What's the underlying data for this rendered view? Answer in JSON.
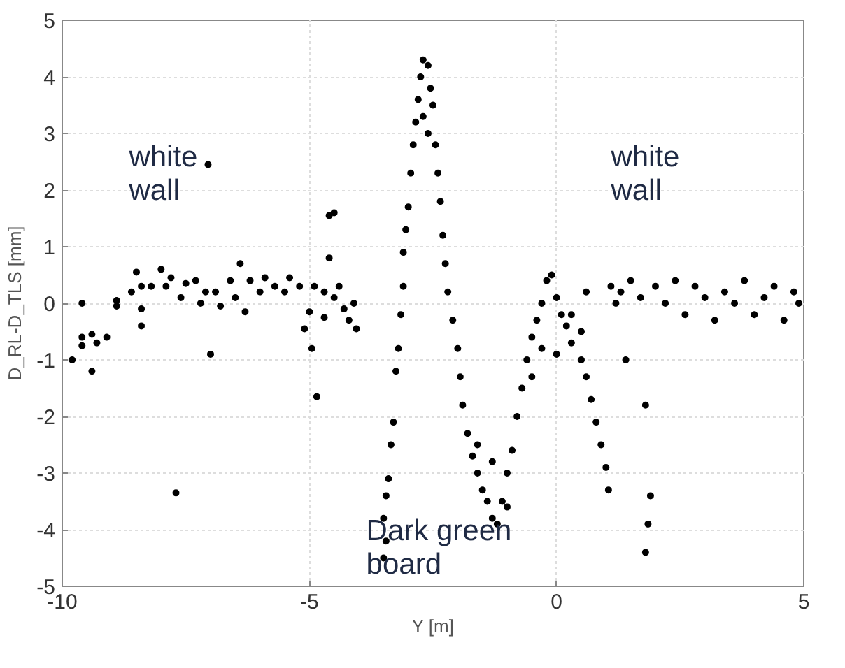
{
  "chart_data": {
    "type": "scatter",
    "xlabel": "Y [m]",
    "ylabel": "D_RL-D_TLS [mm]",
    "xlim": [
      -10,
      5
    ],
    "ylim": [
      -5,
      5
    ],
    "xticks": [
      -10,
      -5,
      0,
      5
    ],
    "yticks": [
      -5,
      -4,
      -3,
      -2,
      -1,
      0,
      1,
      2,
      3,
      4,
      5
    ],
    "grid": true,
    "marker": "circle",
    "annotations": [
      "white\nwall",
      "white\nwall",
      "Dark green\nboard"
    ],
    "series": [
      {
        "color": "#000000",
        "x": [
          -9.8,
          -9.6,
          -9.6,
          -9.6,
          -9.4,
          -9.4,
          -9.3,
          -9.1,
          -8.9,
          -8.9,
          -8.6,
          -8.5,
          -8.4,
          -8.4,
          -8.4,
          -8.2,
          -8.0,
          -7.9,
          -7.8,
          -7.7,
          -7.6,
          -7.5,
          -7.3,
          -7.2,
          -7.1,
          -7.05,
          -7.0,
          -6.9,
          -6.8,
          -6.6,
          -6.5,
          -6.4,
          -6.3,
          -6.2,
          -6.0,
          -5.9,
          -5.7,
          -5.5,
          -5.4,
          -5.2,
          -5.1,
          -5.0,
          -4.95,
          -4.9,
          -4.85,
          -4.7,
          -4.7,
          -4.6,
          -4.6,
          -4.5,
          -4.5,
          -4.4,
          -4.3,
          -4.2,
          -4.1,
          -4.05,
          -3.5,
          -3.45,
          -3.5,
          -3.45,
          -3.4,
          -3.35,
          -3.3,
          -3.25,
          -3.2,
          -3.15,
          -3.1,
          -3.1,
          -3.05,
          -3.0,
          -2.95,
          -2.9,
          -2.85,
          -2.8,
          -2.75,
          -2.7,
          -2.6,
          -2.55,
          -2.7,
          -2.6,
          -2.5,
          -2.45,
          -2.4,
          -2.35,
          -2.3,
          -2.25,
          -2.2,
          -2.1,
          -2.0,
          -1.95,
          -1.9,
          -1.8,
          -1.7,
          -1.6,
          -1.5,
          -1.4,
          -1.3,
          -1.2,
          -1.1,
          -1.0,
          -0.9,
          -0.8,
          -0.7,
          -0.6,
          -0.5,
          -0.4,
          -0.3,
          -0.2,
          -0.1,
          0.0,
          0.1,
          0.2,
          0.3,
          0.5,
          0.6,
          0.7,
          0.8,
          0.9,
          1.0,
          1.05,
          -1.6,
          -1.3,
          -1.0,
          -0.5,
          -0.3,
          0.0,
          0.3,
          0.5,
          0.6,
          1.1,
          1.2,
          1.3,
          1.5,
          1.4,
          1.7,
          1.8,
          1.9,
          1.85,
          1.8,
          2.0,
          2.2,
          2.4,
          2.6,
          2.8,
          3.0,
          3.2,
          3.4,
          3.6,
          3.8,
          4.0,
          4.2,
          4.4,
          4.6,
          4.8,
          4.9
        ],
        "values": [
          -1.0,
          0.0,
          -0.6,
          -0.75,
          -0.55,
          -1.2,
          -0.7,
          -0.6,
          -0.05,
          0.05,
          0.2,
          0.55,
          0.3,
          -0.1,
          -0.4,
          0.3,
          0.6,
          0.3,
          0.45,
          -3.35,
          0.1,
          0.35,
          0.4,
          0.0,
          0.2,
          2.45,
          -0.9,
          0.2,
          -0.05,
          0.4,
          0.1,
          0.7,
          -0.15,
          0.4,
          0.2,
          0.45,
          0.3,
          0.2,
          0.45,
          0.3,
          -0.45,
          -0.15,
          -0.8,
          0.3,
          -1.65,
          0.2,
          -0.25,
          0.8,
          1.55,
          0.1,
          1.6,
          0.3,
          -0.1,
          -0.3,
          0.0,
          -0.45,
          -4.5,
          -4.2,
          -3.8,
          -3.4,
          -3.1,
          -2.5,
          -2.1,
          -1.2,
          -0.8,
          -0.2,
          0.3,
          0.9,
          1.3,
          1.7,
          2.3,
          2.8,
          3.2,
          3.6,
          4.0,
          4.3,
          4.2,
          3.8,
          3.3,
          3.0,
          3.5,
          2.8,
          2.3,
          1.8,
          1.2,
          0.7,
          0.2,
          -0.3,
          -0.8,
          -1.3,
          -1.8,
          -2.3,
          -2.7,
          -3.0,
          -3.3,
          -3.5,
          -3.8,
          -3.9,
          -3.5,
          -3.0,
          -2.6,
          -2.0,
          -1.5,
          -1.0,
          -0.6,
          -0.3,
          0.0,
          0.4,
          0.5,
          0.1,
          -0.2,
          -0.4,
          -0.7,
          -1.0,
          -1.3,
          -1.7,
          -2.1,
          -2.5,
          -2.9,
          -3.3,
          -2.5,
          -2.8,
          -3.6,
          -1.3,
          -0.8,
          -0.9,
          -0.2,
          -0.5,
          0.2,
          0.3,
          0.0,
          0.2,
          0.4,
          -1.0,
          0.1,
          -1.8,
          -3.4,
          -3.9,
          -4.4,
          0.3,
          0.0,
          0.4,
          -0.2,
          0.3,
          0.1,
          -0.3,
          0.2,
          0.0,
          0.4,
          -0.2,
          0.1,
          0.3,
          -0.3,
          0.2,
          0.0
        ]
      }
    ]
  }
}
